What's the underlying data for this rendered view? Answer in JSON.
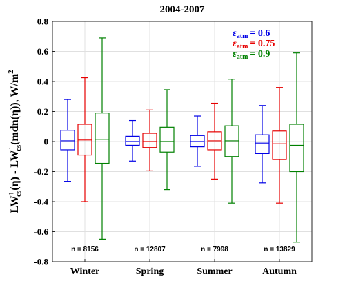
{
  "chart_data": {
    "type": "box",
    "title": "2004-2007",
    "ylabel": {
      "a": "LW",
      "a_sub": "cs",
      "b": "(η) - LW",
      "b_sub": "cs",
      "c": "(mdn(η)), W/m",
      "c_sup": "2"
    },
    "ylim": [
      -0.8,
      0.8
    ],
    "yticks": [
      -0.8,
      -0.6,
      -0.4,
      -0.2,
      0,
      0.2,
      0.4,
      0.6,
      0.8
    ],
    "ytick_labels": [
      "-0.8",
      "-0.6",
      "-0.4",
      "-0.2",
      "0",
      "0.2",
      "0.4",
      "0.6",
      "0.8"
    ],
    "grid": true,
    "categories": [
      "Winter",
      "Spring",
      "Summer",
      "Autumn"
    ],
    "counts": [
      "n = 8156",
      "n = 12807",
      "n = 7998",
      "n = 13829"
    ],
    "legend": {
      "position": "top-right",
      "symbol": "ε",
      "sub": "atm"
    },
    "series": [
      {
        "name": "= 0.6",
        "color": "#0000e6",
        "boxes": [
          {
            "lower_whisker": -0.265,
            "q1": -0.055,
            "median": 0.005,
            "q3": 0.075,
            "upper_whisker": 0.28
          },
          {
            "lower_whisker": -0.13,
            "q1": -0.025,
            "median": 0.0,
            "q3": 0.035,
            "upper_whisker": 0.14
          },
          {
            "lower_whisker": -0.165,
            "q1": -0.035,
            "median": 0.0,
            "q3": 0.04,
            "upper_whisker": 0.17
          },
          {
            "lower_whisker": -0.275,
            "q1": -0.08,
            "median": -0.01,
            "q3": 0.045,
            "upper_whisker": 0.24
          }
        ]
      },
      {
        "name": "= 0.75",
        "color": "#e60000",
        "boxes": [
          {
            "lower_whisker": -0.4,
            "q1": -0.09,
            "median": 0.01,
            "q3": 0.115,
            "upper_whisker": 0.425
          },
          {
            "lower_whisker": -0.195,
            "q1": -0.04,
            "median": 0.0,
            "q3": 0.055,
            "upper_whisker": 0.21
          },
          {
            "lower_whisker": -0.25,
            "q1": -0.055,
            "median": 0.005,
            "q3": 0.065,
            "upper_whisker": 0.255
          },
          {
            "lower_whisker": -0.41,
            "q1": -0.12,
            "median": -0.015,
            "q3": 0.07,
            "upper_whisker": 0.36
          }
        ]
      },
      {
        "name": "= 0.9",
        "color": "#008000",
        "boxes": [
          {
            "lower_whisker": -0.65,
            "q1": -0.145,
            "median": 0.015,
            "q3": 0.19,
            "upper_whisker": 0.69
          },
          {
            "lower_whisker": -0.32,
            "q1": -0.07,
            "median": 0.0,
            "q3": 0.095,
            "upper_whisker": 0.345
          },
          {
            "lower_whisker": -0.41,
            "q1": -0.1,
            "median": 0.005,
            "q3": 0.105,
            "upper_whisker": 0.415
          },
          {
            "lower_whisker": -0.67,
            "q1": -0.2,
            "median": -0.025,
            "q3": 0.115,
            "upper_whisker": 0.59
          }
        ]
      }
    ]
  }
}
